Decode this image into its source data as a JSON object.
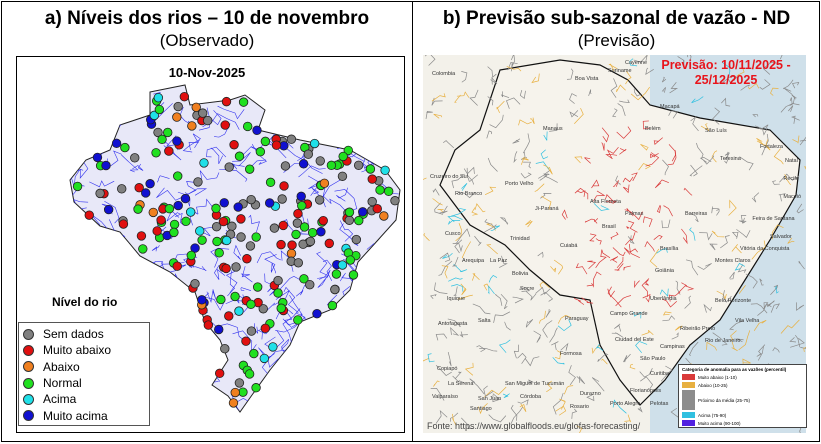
{
  "panel_a": {
    "title": "a)   Níveis dos rios – 10 de novembro",
    "subtitle": "(Observado)",
    "map_date": "10-Nov-2025",
    "legend_title": "Nível do rio",
    "legend": [
      {
        "label": "Sem dados",
        "color": "#808080"
      },
      {
        "label": "Muito abaixo",
        "color": "#e01010"
      },
      {
        "label": "Abaixo",
        "color": "#f08020"
      },
      {
        "label": "Normal",
        "color": "#20e020"
      },
      {
        "label": "Acima",
        "color": "#20e0e8"
      },
      {
        "label": "Muito acima",
        "color": "#1010d0"
      }
    ],
    "river_color": "#3333ee"
  },
  "panel_b": {
    "title": "b)   Previsão sub-sazonal de vazão - ND",
    "subtitle": "(Previsão)",
    "forecast_label": "Previsão: 10/11/2025 - 25/12/2025",
    "legend_title": "Categoria de anomalia para as vazões (percentil)",
    "legend": [
      {
        "label": "Muito abaixo (1-10)",
        "color": "#d93a3a"
      },
      {
        "label": "Abaixo (10-25)",
        "color": "#e8b040"
      },
      {
        "label": "Próximo da média (25-75)",
        "color": "#8c8c8c"
      },
      {
        "label": "Acima (75-90)",
        "color": "#30c0e0"
      },
      {
        "label": "Muito acima (90-100)",
        "color": "#5020e0"
      }
    ],
    "source": "Fonte: https://www.globalfloods.eu/glofas-forecasting/",
    "places": [
      "Colombia",
      "Boa Vista",
      "Suriname",
      "Cayenne",
      "Macapá",
      "Manaus",
      "Belém",
      "São Luís",
      "Fortaleza",
      "Teresina",
      "Natal",
      "Recife",
      "Maceió",
      "Cruzeiro do Sul",
      "Rio Branco",
      "Porto Velho",
      "Ji-Paraná",
      "Alta Floresta",
      "Palmas",
      "Brasil",
      "Barreiras",
      "Feira de Santana",
      "Salvador",
      "Vitória da Conquista",
      "Cuiabá",
      "Brasília",
      "Montes Claros",
      "Goiânia",
      "Trinidad",
      "La Paz",
      "Bolivia",
      "Sucre",
      "Arequipa",
      "Iquique",
      "Antofagasta",
      "Paraguay",
      "Campo Grande",
      "Uberlândia",
      "Ribeirão Preto",
      "Belo Horizonte",
      "Vila Velha",
      "Rio de Janeiro",
      "Campinas",
      "São Paulo",
      "Curitiba",
      "Florianópolis",
      "Porto Alegre",
      "Pelotas",
      "Ciudad del Este",
      "Formosa",
      "Salta",
      "San Miguel de Tucumán",
      "Copiapó",
      "La Serena",
      "Córdoba",
      "Rosario",
      "San Juan",
      "Santiago",
      "Valparaíso",
      "Durazno",
      "Cusco"
    ]
  }
}
